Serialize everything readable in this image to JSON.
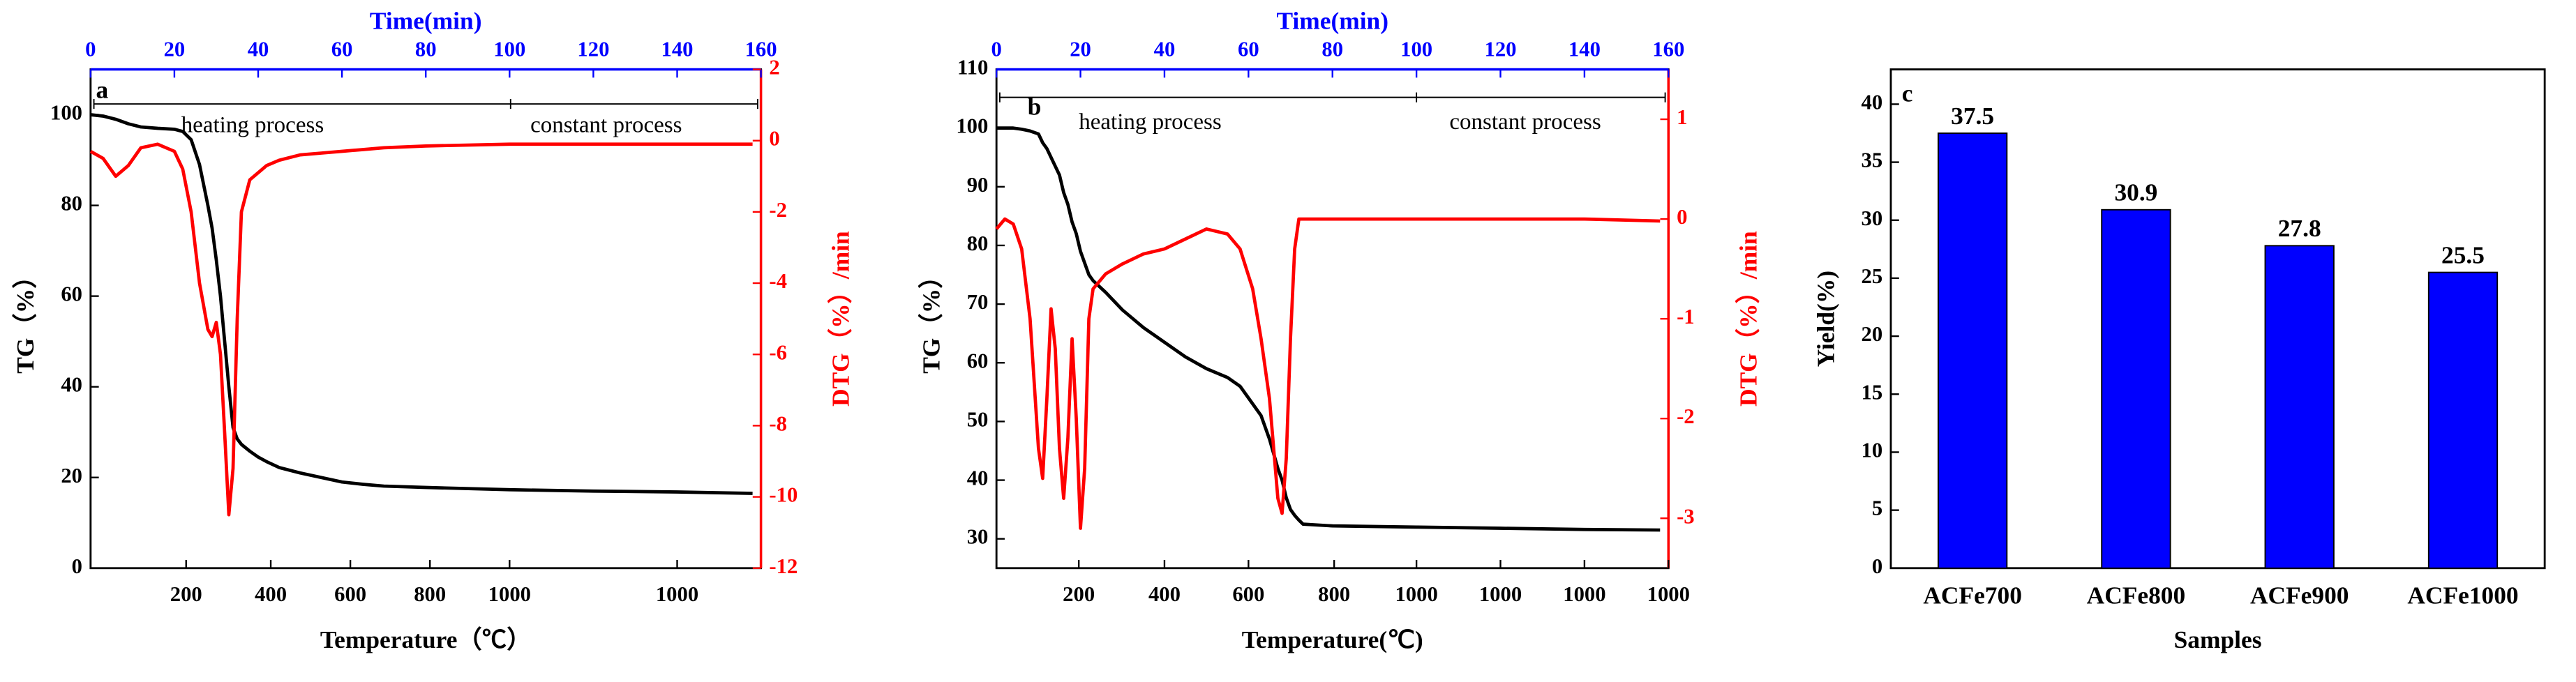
{
  "chart_data": [
    {
      "type": "line",
      "label": "a",
      "annotations": [
        "heating process",
        "constant process"
      ],
      "xlabel": "Temperature（℃）",
      "x2label": "Time(min)",
      "ylabel": "TG（%）",
      "y2label": "DTG（%）/min",
      "xlim": [
        0,
        160
      ],
      "xticks": [
        {
          "value": 22.8,
          "label": "200"
        },
        {
          "value": 43,
          "label": "400"
        },
        {
          "value": 62,
          "label": "600"
        },
        {
          "value": 81,
          "label": "800"
        },
        {
          "value": 100,
          "label": "1000"
        },
        {
          "value": 140,
          "label": "1000"
        }
      ],
      "x2ticks": [
        0,
        20,
        40,
        60,
        80,
        100,
        120,
        140,
        160
      ],
      "ylim": [
        0,
        110
      ],
      "yticks": [
        0,
        20,
        40,
        60,
        80,
        100
      ],
      "y2lim": [
        -12,
        2
      ],
      "y2ticks": [
        -12,
        -10,
        -8,
        -6,
        -4,
        -2,
        0,
        2
      ],
      "x": [
        0,
        3,
        6,
        9,
        12,
        16,
        20,
        22,
        24,
        26,
        28,
        29,
        30,
        31,
        32,
        33,
        34,
        35,
        36,
        38,
        40,
        42,
        45,
        50,
        55,
        60,
        65,
        70,
        80,
        100,
        120,
        140,
        158
      ],
      "series": [
        {
          "color": "#000000",
          "values": [
            100,
            99.7,
            99,
            98,
            97.3,
            97,
            96.8,
            96.3,
            94.5,
            89,
            80,
            75,
            68,
            60,
            50,
            40,
            31,
            28.5,
            27.3,
            25.8,
            24.5,
            23.5,
            22.2,
            21,
            20,
            19,
            18.5,
            18.1,
            17.8,
            17.3,
            17,
            16.8,
            16.5
          ]
        },
        {
          "color": "#ff0000",
          "axis": "y2",
          "values": [
            -0.3,
            -0.5,
            -1.0,
            -0.7,
            -0.2,
            -0.1,
            -0.3,
            -0.8,
            -2,
            -4,
            -5.3,
            -5.5,
            -5.1,
            -6,
            -8.2,
            -10.5,
            -9.2,
            -5,
            -2,
            -1.1,
            -0.9,
            -0.7,
            -0.55,
            -0.4,
            -0.35,
            -0.3,
            -0.25,
            -0.2,
            -0.15,
            -0.1,
            -0.1,
            -0.1,
            -0.1
          ]
        }
      ]
    },
    {
      "type": "line",
      "label": "b",
      "annotations": [
        "heating process",
        "constant process"
      ],
      "xlabel": "Temperature(℃)",
      "x2label": "Time(min)",
      "ylabel": "TG（%）",
      "y2label": "DTG（%）/min",
      "xlim": [
        0,
        160
      ],
      "xticks": [
        {
          "value": 19.6,
          "label": "200"
        },
        {
          "value": 40,
          "label": "400"
        },
        {
          "value": 60,
          "label": "600"
        },
        {
          "value": 80.4,
          "label": "800"
        },
        {
          "value": 100,
          "label": "1000"
        },
        {
          "value": 120,
          "label": "1000"
        },
        {
          "value": 140,
          "label": "1000"
        },
        {
          "value": 160,
          "label": "1000"
        }
      ],
      "x2ticks": [
        0,
        20,
        40,
        60,
        80,
        100,
        120,
        140,
        160
      ],
      "ylim": [
        25,
        110
      ],
      "yticks": [
        30,
        40,
        50,
        60,
        70,
        80,
        90,
        100,
        110
      ],
      "y2lim": [
        -3.5,
        1.5
      ],
      "y2ticks": [
        -3,
        -2,
        -1,
        0,
        1
      ],
      "x": [
        0,
        2,
        4,
        6,
        8,
        10,
        11,
        12,
        13,
        14,
        15,
        16,
        17,
        18,
        19,
        20,
        21,
        22,
        23,
        26,
        30,
        35,
        40,
        45,
        50,
        55,
        58,
        61,
        63,
        65,
        67,
        68,
        69,
        70,
        71,
        72,
        73,
        80,
        100,
        120,
        140,
        158
      ],
      "series": [
        {
          "color": "#000000",
          "values": [
            100,
            100,
            100,
            99.8,
            99.5,
            99,
            97.5,
            96.5,
            95,
            93.5,
            92,
            89,
            87,
            84,
            82,
            79,
            77,
            75,
            74,
            72,
            69,
            66,
            63.5,
            61,
            59,
            57.5,
            56,
            53,
            51,
            47,
            42,
            40,
            37,
            35,
            34,
            33.2,
            32.5,
            32.2,
            32,
            31.8,
            31.6,
            31.5
          ]
        },
        {
          "color": "#ff0000",
          "axis": "y2",
          "values": [
            -0.1,
            0,
            -0.05,
            -0.3,
            -1,
            -2.3,
            -2.6,
            -1.8,
            -0.9,
            -1.3,
            -2.3,
            -2.8,
            -2.2,
            -1.2,
            -2.0,
            -3.1,
            -2.5,
            -1.0,
            -0.7,
            -0.55,
            -0.45,
            -0.35,
            -0.3,
            -0.2,
            -0.1,
            -0.15,
            -0.3,
            -0.7,
            -1.2,
            -1.8,
            -2.8,
            -2.95,
            -2.4,
            -1.2,
            -0.3,
            0,
            0,
            0,
            0,
            0,
            0,
            -0.02
          ]
        }
      ]
    },
    {
      "type": "bar",
      "label": "c",
      "xlabel": "Samples",
      "ylabel": "Yield(%)",
      "categories": [
        "ACFe700",
        "ACFe800",
        "ACFe900",
        "ACFe1000"
      ],
      "values": [
        37.5,
        30.9,
        27.8,
        25.5
      ],
      "color": "#0000ff",
      "ylim": [
        0,
        43
      ],
      "yticks": [
        0,
        5,
        10,
        15,
        20,
        25,
        30,
        35,
        40
      ]
    }
  ]
}
